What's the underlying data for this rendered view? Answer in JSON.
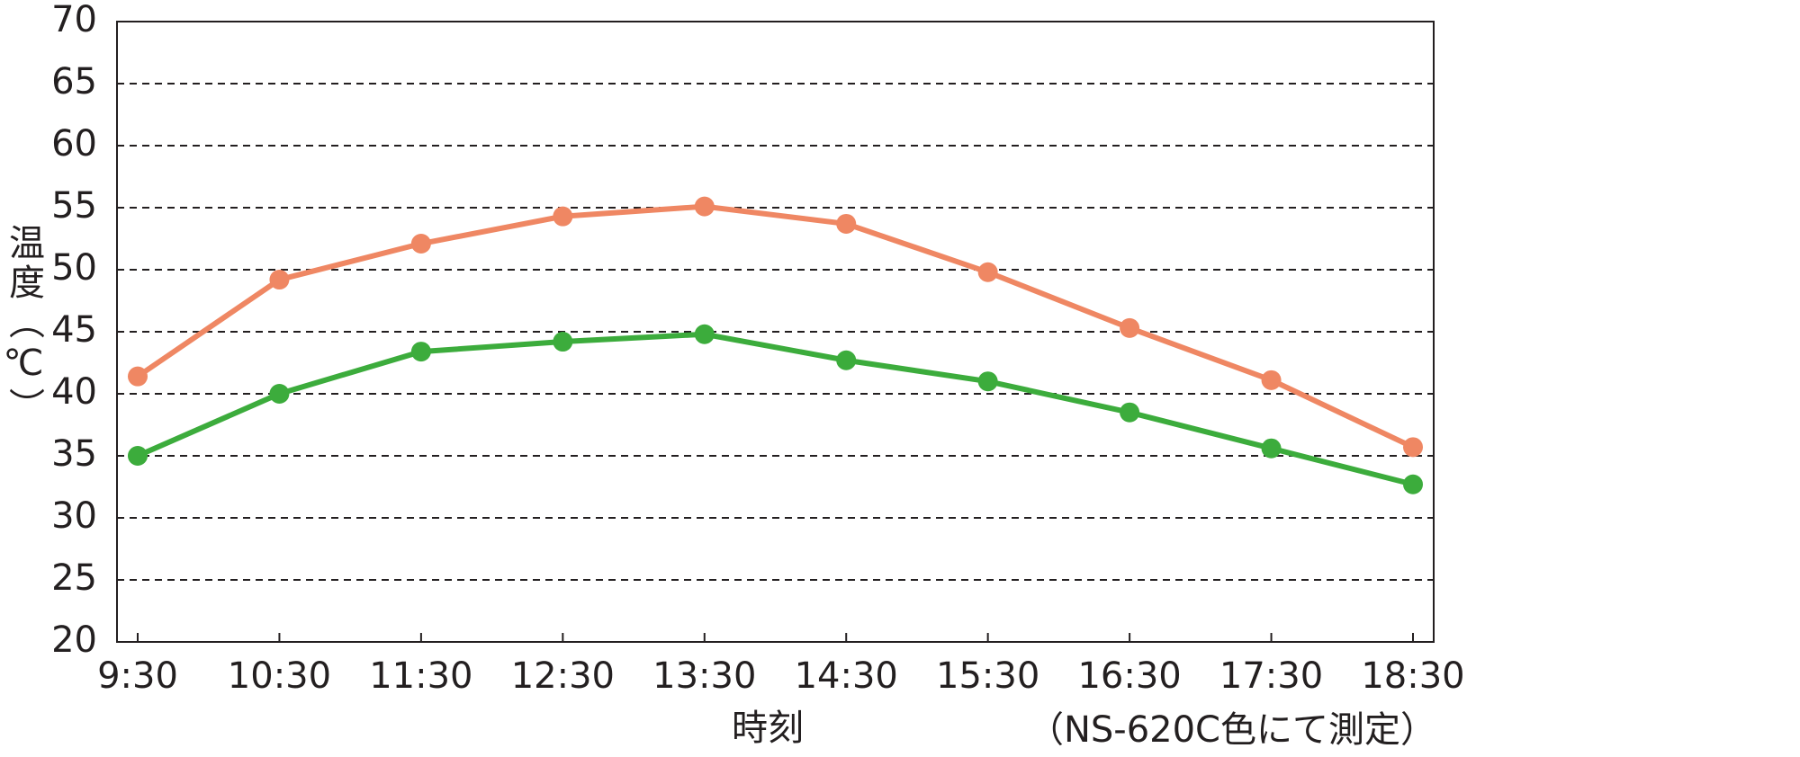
{
  "chart_data": {
    "type": "line",
    "x_label": "時刻",
    "y_label": "温度（℃）",
    "annotation": "（NS-620C色にて測定）",
    "categories": [
      "9:30",
      "10:30",
      "11:30",
      "12:30",
      "13:30",
      "14:30",
      "15:30",
      "16:30",
      "17:30",
      "18:30"
    ],
    "series": [
      {
        "color": "#ef8763",
        "values": [
          41.4,
          49.2,
          52.1,
          54.3,
          55.1,
          53.7,
          49.8,
          45.3,
          41.1,
          35.7
        ]
      },
      {
        "color": "#3cac3c",
        "values": [
          35.0,
          40.0,
          43.4,
          44.2,
          44.8,
          42.7,
          41.0,
          38.5,
          35.6,
          32.7
        ]
      }
    ],
    "ylim": [
      20,
      70
    ],
    "yticks": [
      20,
      25,
      30,
      35,
      40,
      45,
      50,
      55,
      60,
      65,
      70
    ],
    "grid": true
  }
}
